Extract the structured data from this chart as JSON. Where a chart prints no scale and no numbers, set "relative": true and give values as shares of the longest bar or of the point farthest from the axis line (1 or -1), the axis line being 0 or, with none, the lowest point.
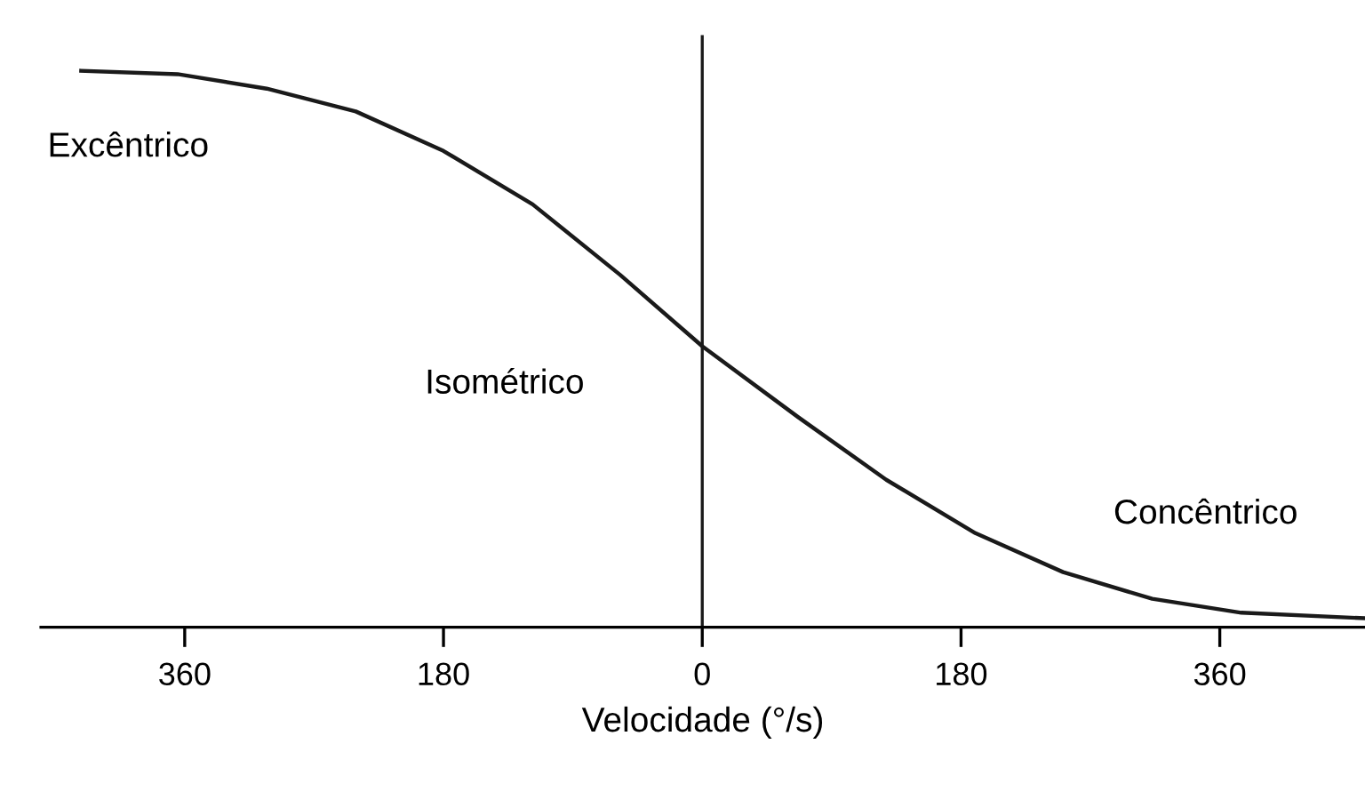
{
  "chart_data": {
    "type": "line",
    "relative": true,
    "xlabel": "Velocidade (°/s)",
    "xlim": [
      -460,
      461
    ],
    "xticks": [
      {
        "value": -360,
        "label": "360"
      },
      {
        "value": -180,
        "label": "180"
      },
      {
        "value": 0,
        "label": "0"
      },
      {
        "value": 180,
        "label": "180"
      },
      {
        "value": 360,
        "label": "360"
      }
    ],
    "series": [
      {
        "color": "#1a1a1a",
        "x": [
          -432,
          -365,
          -303,
          -241,
          -180,
          -118,
          -57,
          0,
          67,
          128,
          190,
          251,
          313,
          375,
          461
        ],
        "values": [
          1.0,
          0.994,
          0.968,
          0.927,
          0.856,
          0.76,
          0.633,
          0.505,
          0.377,
          0.265,
          0.169,
          0.099,
          0.051,
          0.026,
          0.016
        ]
      }
    ],
    "annotations": [
      "Excêntrico",
      "Isométrico",
      "Concêntrico"
    ],
    "ref_lines": [
      {
        "axis": "x",
        "value": 0,
        "color": "#1a1a1a",
        "line_style": "solid"
      }
    ],
    "grid": false,
    "legend": false,
    "marker": "none",
    "line_style": "solid"
  }
}
